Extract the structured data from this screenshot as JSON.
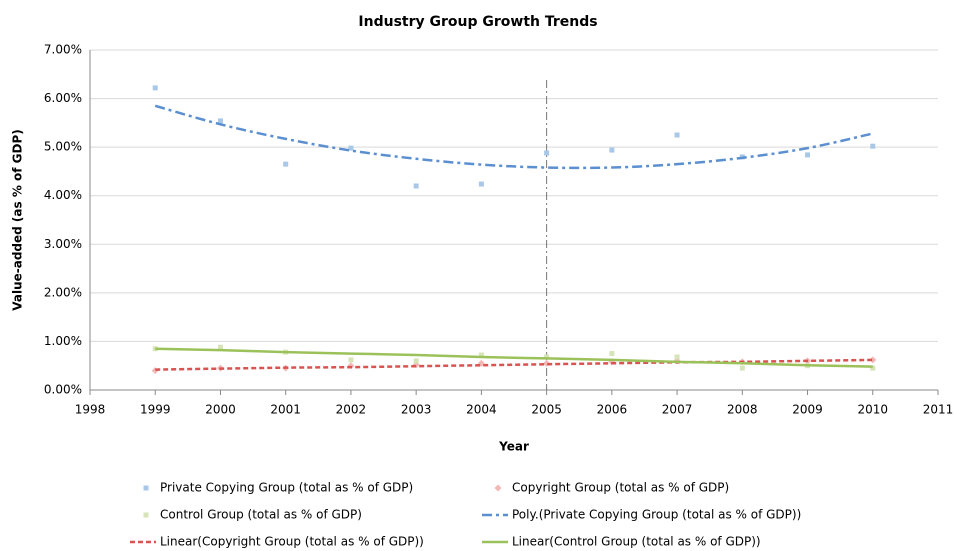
{
  "chart_data": {
    "type": "scatter",
    "title": "Industry Group Growth Trends",
    "x_label": "Year",
    "y_label": "Value-added (as % of GDP)",
    "x": [
      1999,
      2000,
      2001,
      2002,
      2003,
      2004,
      2005,
      2006,
      2007,
      2008,
      2009,
      2010
    ],
    "series": [
      {
        "name": "Private Copying Group (total as % of GDP)",
        "color": "#a9c8e8",
        "marker": "square",
        "values": [
          6.22,
          5.54,
          4.65,
          4.98,
          4.2,
          4.24,
          4.88,
          4.94,
          5.25,
          4.8,
          4.84,
          5.02
        ]
      },
      {
        "name": "Copyright Group (total as % of GDP)",
        "color": "#f2b8b8",
        "marker": "diamond",
        "values": [
          0.4,
          0.45,
          0.45,
          0.5,
          0.52,
          0.55,
          0.55,
          0.58,
          0.6,
          0.58,
          0.6,
          0.62
        ]
      },
      {
        "name": "Control Group (total as % of GDP)",
        "color": "#d6e4b8",
        "marker": "square",
        "values": [
          0.85,
          0.88,
          0.78,
          0.62,
          0.6,
          0.72,
          0.68,
          0.75,
          0.68,
          0.45,
          0.5,
          0.45
        ]
      },
      {
        "name": "Poly.(Private Copying Group (total as % of GDP))",
        "color": "#5b8fd0",
        "dash": "dashdot",
        "values": [
          5.85,
          5.47,
          5.17,
          4.93,
          4.76,
          4.64,
          4.58,
          4.58,
          4.65,
          4.78,
          4.98,
          5.28
        ]
      },
      {
        "name": "Linear(Copyright Group (total as % of GDP))",
        "color": "#d9534f",
        "dash": "dash",
        "values": [
          0.42,
          0.44,
          0.46,
          0.47,
          0.49,
          0.51,
          0.53,
          0.55,
          0.57,
          0.58,
          0.6,
          0.62
        ]
      },
      {
        "name": "Linear(Control Group (total as % of GDP))",
        "color": "#9bc15a",
        "dash": "solid",
        "values": [
          0.85,
          0.82,
          0.78,
          0.75,
          0.72,
          0.68,
          0.65,
          0.62,
          0.58,
          0.55,
          0.51,
          0.48
        ]
      }
    ],
    "vline": 2005,
    "xlim": [
      1998,
      2011
    ],
    "xticks": [
      1998,
      1999,
      2000,
      2001,
      2002,
      2003,
      2004,
      2005,
      2006,
      2007,
      2008,
      2009,
      2010,
      2011
    ],
    "ylim": [
      0,
      7
    ],
    "yticks": [
      {
        "value": 0,
        "label": "0.00%"
      },
      {
        "value": 1,
        "label": "1.00%"
      },
      {
        "value": 2,
        "label": "2.00%"
      },
      {
        "value": 3,
        "label": "3.00%"
      },
      {
        "value": 4,
        "label": "4.00%"
      },
      {
        "value": 5,
        "label": "5.00%"
      },
      {
        "value": 6,
        "label": "6.00%"
      },
      {
        "value": 7,
        "label": "7.00%"
      }
    ],
    "grid": true
  }
}
